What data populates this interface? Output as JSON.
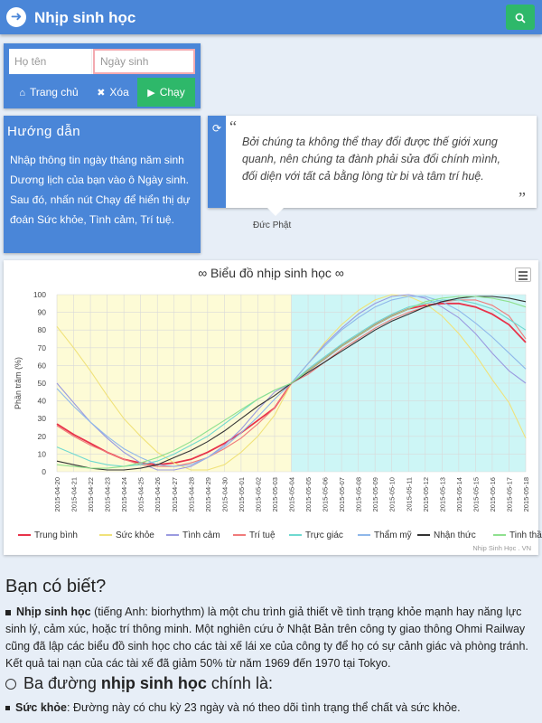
{
  "app": {
    "title": "Nhịp sinh học",
    "logo_icon": "arrow-right-circle-icon",
    "search_icon": "search-icon"
  },
  "form": {
    "name_placeholder": "Họ tên",
    "date_placeholder": "Ngày sinh",
    "home_label": "Trang chủ",
    "clear_label": "Xóa",
    "run_label": "Chạy"
  },
  "guide": {
    "title": "Hướng dẫn",
    "text": "Nhập thông tin ngày tháng năm sinh Dương lịch của bạn vào ô Ngày sinh. Sau đó, nhấn nút Chạy để hiển thị dự đoán Sức khỏe, Tình cảm, Trí tuệ."
  },
  "quote": {
    "open_mark": "“",
    "close_mark": "”",
    "text": "Bởi chúng ta không thể thay đổi được thế giới xung quanh, nên chúng ta đành phải sửa đổi chính mình, đối diện với tất cả bằng lòng từ bi và tâm trí huệ.",
    "author": "Đức Phật"
  },
  "chart_data": {
    "type": "line",
    "title": "∞ Biểu đồ nhịp sinh học ∞",
    "ylabel": "Phần trăm (%)",
    "xlabel": "",
    "ylim": [
      0,
      100
    ],
    "yticks": [
      0,
      10,
      20,
      30,
      40,
      50,
      60,
      70,
      80,
      90,
      100
    ],
    "x": [
      "2015-04-20",
      "2015-04-21",
      "2015-04-22",
      "2015-04-23",
      "2015-04-24",
      "2015-04-25",
      "2015-04-26",
      "2015-04-27",
      "2015-04-28",
      "2015-04-29",
      "2015-04-30",
      "2015-05-01",
      "2015-05-02",
      "2015-05-03",
      "2015-05-04",
      "2015-05-05",
      "2015-05-06",
      "2015-05-07",
      "2015-05-08",
      "2015-05-09",
      "2015-05-10",
      "2015-05-11",
      "2015-05-12",
      "2015-05-13",
      "2015-05-14",
      "2015-05-15",
      "2015-05-16",
      "2015-05-17",
      "2015-05-18"
    ],
    "highlight_past_until": "2015-05-04",
    "grid": true,
    "legend_position": "bottom",
    "series": [
      {
        "name": "Trung bình",
        "color": "#e8334a",
        "values": [
          27,
          21,
          16,
          11,
          7,
          5,
          4,
          5,
          7,
          11,
          16,
          22,
          29,
          36,
          50,
          57,
          64,
          71,
          77,
          83,
          88,
          92,
          94,
          95,
          95,
          93,
          89,
          83,
          73
        ]
      },
      {
        "name": "Sức khỏe",
        "color": "#f0e27a",
        "values": [
          82,
          70,
          57,
          43,
          30,
          20,
          11,
          5,
          1,
          1,
          4,
          11,
          20,
          32,
          50,
          61,
          73,
          83,
          91,
          97,
          100,
          99,
          95,
          88,
          78,
          66,
          52,
          39,
          19
        ]
      },
      {
        "name": "Tình cảm",
        "color": "#9a9ae0",
        "values": [
          50,
          39,
          28,
          19,
          11,
          5,
          1,
          1,
          3,
          8,
          15,
          24,
          35,
          45,
          50,
          61,
          72,
          81,
          89,
          95,
          99,
          100,
          98,
          93,
          87,
          78,
          67,
          57,
          50
        ]
      },
      {
        "name": "Trí tuệ",
        "color": "#f07b7b",
        "values": [
          26,
          20,
          15,
          11,
          7,
          4,
          3,
          3,
          5,
          8,
          13,
          19,
          27,
          36,
          50,
          55,
          62,
          69,
          75,
          81,
          86,
          90,
          93,
          96,
          97,
          97,
          94,
          88,
          75
        ]
      },
      {
        "name": "Trực giác",
        "color": "#6fd9d0",
        "values": [
          14,
          10,
          6,
          4,
          3,
          4,
          6,
          10,
          15,
          20,
          27,
          34,
          41,
          46,
          50,
          58,
          65,
          72,
          78,
          84,
          89,
          93,
          95,
          97,
          97,
          95,
          92,
          86,
          80
        ]
      },
      {
        "name": "Thẩm mỹ",
        "color": "#8fb8ea",
        "values": [
          47,
          37,
          28,
          20,
          13,
          8,
          4,
          3,
          4,
          8,
          14,
          22,
          31,
          41,
          50,
          61,
          71,
          80,
          87,
          93,
          97,
          99,
          99,
          96,
          91,
          84,
          76,
          67,
          58
        ]
      },
      {
        "name": "Nhận thức",
        "color": "#333333",
        "values": [
          6,
          4,
          2,
          1,
          1,
          2,
          4,
          8,
          12,
          17,
          23,
          30,
          37,
          43,
          50,
          56,
          62,
          68,
          74,
          80,
          85,
          89,
          93,
          96,
          98,
          99,
          99,
          98,
          96
        ]
      },
      {
        "name": "Tinh thần",
        "color": "#8fe08f",
        "values": [
          4,
          3,
          2,
          2,
          3,
          5,
          8,
          12,
          17,
          23,
          29,
          35,
          41,
          46,
          50,
          57,
          64,
          71,
          77,
          83,
          88,
          92,
          96,
          98,
          99,
          99,
          98,
          96,
          93
        ]
      }
    ],
    "credit": "Nhịp Sinh Học . VN"
  },
  "did_you_know": {
    "title": "Bạn có biết?",
    "term": "Nhịp sinh học",
    "paragraph": " (tiếng Anh: biorhythm) là một chu trình giả thiết về tình trạng khỏe mạnh hay năng lực sinh lý, cảm xúc, hoặc trí thông minh. Một nghiên cứu ở Nhật Bản trên công ty giao thông Ohmi Railway cũng đã lập các biểu đồ sinh học cho các tài xế lái xe của công ty để họ có sự cảnh giác và phòng tránh. Kết quả tai nạn của các tài xế đã giảm 50% từ năm 1969 đến 1970 tại Tokyo.",
    "heading_prefix": "Ba đường ",
    "heading_term": "nhịp sinh học",
    "heading_suffix": " chính là:",
    "item_term": "Sức khỏe",
    "item_text": ": Đường này có chu kỳ 23 ngày và nó theo dõi tình trạng thể chất và sức khỏe."
  }
}
